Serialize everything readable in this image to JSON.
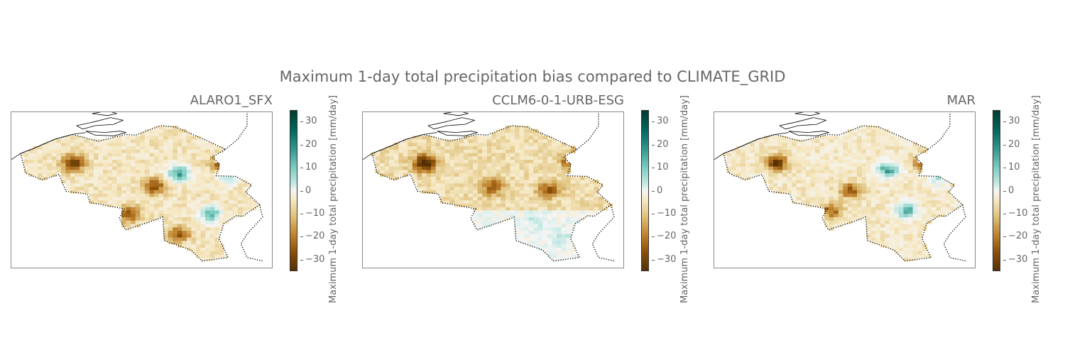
{
  "figure": {
    "suptitle": "Maximum 1-day total precipitation bias compared to CLIMATE_GRID"
  },
  "colorbar": {
    "label": "Maximum 1-day total precipitation [mm/day]",
    "ticks": [
      "30",
      "20",
      "10",
      "0",
      "−10",
      "−20",
      "−30"
    ],
    "range": [
      -35,
      35
    ],
    "colormap": "BrBG",
    "colors": [
      "#543005",
      "#8c510a",
      "#bf812d",
      "#dfc27d",
      "#f6e8c3",
      "#f5f5f5",
      "#c7eae5",
      "#80cdc1",
      "#35978f",
      "#01665e",
      "#003c30"
    ]
  },
  "panels": [
    {
      "title": "ALARO1_SFX"
    },
    {
      "title": "CCLM6-0-1-URB-ESG"
    },
    {
      "title": "MAR"
    }
  ],
  "chart_data": {
    "type": "heatmap",
    "title": "Maximum 1-day total precipitation bias compared to CLIMATE_GRID",
    "units": "mm/day",
    "vmin": -35,
    "vmax": 35,
    "panels": [
      {
        "model": "ALARO1_SFX",
        "features": [
          {
            "lon": 3.4,
            "lat": 50.95,
            "value": -28
          },
          {
            "lon": 5.1,
            "lat": 50.8,
            "value": 28
          },
          {
            "lon": 5.6,
            "lat": 50.2,
            "value": 26
          },
          {
            "lon": 5.9,
            "lat": 50.75,
            "value": 18
          },
          {
            "lon": 4.7,
            "lat": 50.6,
            "value": -22
          },
          {
            "lon": 4.3,
            "lat": 50.2,
            "value": -20
          },
          {
            "lon": 5.8,
            "lat": 50.95,
            "value": -24
          },
          {
            "lon": 5.1,
            "lat": 49.9,
            "value": -20
          }
        ]
      },
      {
        "model": "CCLM6-0-1-URB-ESG",
        "features": [
          {
            "lon": 3.4,
            "lat": 50.95,
            "value": -30
          },
          {
            "lon": 5.8,
            "lat": 51.0,
            "value": -26
          },
          {
            "lon": 4.5,
            "lat": 50.6,
            "value": -18
          },
          {
            "lon": 5.4,
            "lat": 50.55,
            "value": -18
          },
          {
            "lon": 5.6,
            "lat": 49.85,
            "value": 8
          },
          {
            "lon": 5.2,
            "lat": 50.1,
            "value": 7
          }
        ]
      },
      {
        "model": "MAR",
        "features": [
          {
            "lon": 3.4,
            "lat": 50.95,
            "value": -28
          },
          {
            "lon": 5.2,
            "lat": 50.85,
            "value": 26
          },
          {
            "lon": 5.5,
            "lat": 50.25,
            "value": 24
          },
          {
            "lon": 6.0,
            "lat": 50.75,
            "value": 16
          },
          {
            "lon": 5.8,
            "lat": 50.95,
            "value": -26
          },
          {
            "lon": 4.6,
            "lat": 50.55,
            "value": -20
          },
          {
            "lon": 4.3,
            "lat": 50.25,
            "value": -18
          }
        ]
      }
    ]
  }
}
